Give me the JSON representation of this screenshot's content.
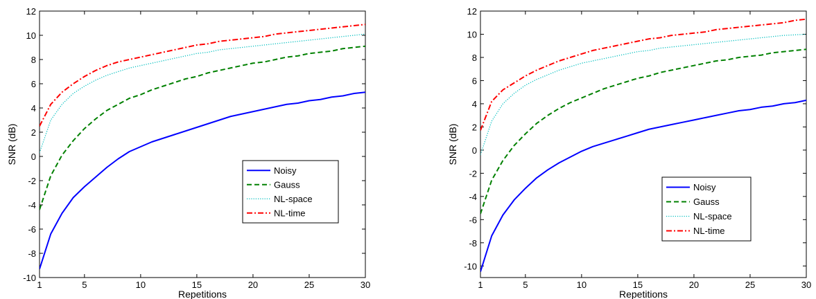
{
  "colors": {
    "noisy": "#0000ff",
    "gauss": "#008000",
    "nlspace": "#00bfbf",
    "nltime": "#ff0000",
    "axis": "#000000",
    "background": "#ffffff"
  },
  "chart_data": [
    {
      "type": "line",
      "xlabel": "Repetitions",
      "ylabel": "SNR (dB)",
      "xlim": [
        1,
        30
      ],
      "ylim": [
        -10,
        12
      ],
      "xticks": [
        1,
        5,
        10,
        15,
        20,
        25,
        30
      ],
      "yticks": [
        -10,
        -8,
        -6,
        -4,
        -2,
        0,
        2,
        4,
        6,
        8,
        10,
        12
      ],
      "grid": false,
      "legend_position": "center-right",
      "x": [
        1,
        2,
        3,
        4,
        5,
        6,
        7,
        8,
        9,
        10,
        11,
        12,
        13,
        14,
        15,
        16,
        17,
        18,
        19,
        20,
        21,
        22,
        23,
        24,
        25,
        26,
        27,
        28,
        29,
        30
      ],
      "series": [
        {
          "name": "Noisy",
          "color_key": "noisy",
          "style": "solid",
          "values": [
            -9.3,
            -6.4,
            -4.7,
            -3.4,
            -2.5,
            -1.7,
            -0.9,
            -0.2,
            0.4,
            0.8,
            1.2,
            1.5,
            1.8,
            2.1,
            2.4,
            2.7,
            3.0,
            3.3,
            3.5,
            3.7,
            3.9,
            4.1,
            4.3,
            4.4,
            4.6,
            4.7,
            4.9,
            5.0,
            5.2,
            5.3
          ]
        },
        {
          "name": "Gauss",
          "color_key": "gauss",
          "style": "dashed",
          "values": [
            -4.4,
            -1.6,
            0.1,
            1.3,
            2.3,
            3.1,
            3.8,
            4.3,
            4.8,
            5.1,
            5.5,
            5.8,
            6.1,
            6.4,
            6.6,
            6.9,
            7.1,
            7.3,
            7.5,
            7.7,
            7.8,
            8.0,
            8.2,
            8.3,
            8.5,
            8.6,
            8.7,
            8.9,
            9.0,
            9.1
          ]
        },
        {
          "name": "NL-space",
          "color_key": "nlspace",
          "style": "dotted",
          "values": [
            0.3,
            3.0,
            4.3,
            5.2,
            5.8,
            6.3,
            6.7,
            7.0,
            7.3,
            7.5,
            7.7,
            7.9,
            8.1,
            8.3,
            8.5,
            8.6,
            8.8,
            8.9,
            9.0,
            9.1,
            9.2,
            9.3,
            9.4,
            9.5,
            9.6,
            9.7,
            9.8,
            9.9,
            10.0,
            10.1
          ]
        },
        {
          "name": "NL-time",
          "color_key": "nltime",
          "style": "dashdot",
          "values": [
            2.5,
            4.3,
            5.3,
            6.0,
            6.6,
            7.1,
            7.5,
            7.8,
            8.0,
            8.2,
            8.4,
            8.6,
            8.8,
            9.0,
            9.2,
            9.3,
            9.5,
            9.6,
            9.7,
            9.8,
            9.9,
            10.1,
            10.2,
            10.3,
            10.4,
            10.5,
            10.6,
            10.7,
            10.8,
            10.9
          ]
        }
      ]
    },
    {
      "type": "line",
      "xlabel": "Repetitions",
      "ylabel": "SNR (dB)",
      "xlim": [
        1,
        30
      ],
      "ylim": [
        -11,
        12
      ],
      "xticks": [
        1,
        5,
        10,
        15,
        20,
        25,
        30
      ],
      "yticks": [
        -10,
        -8,
        -6,
        -4,
        -2,
        0,
        2,
        4,
        6,
        8,
        10,
        12
      ],
      "grid": false,
      "legend_position": "bottom-right",
      "x": [
        1,
        2,
        3,
        4,
        5,
        6,
        7,
        8,
        9,
        10,
        11,
        12,
        13,
        14,
        15,
        16,
        17,
        18,
        19,
        20,
        21,
        22,
        23,
        24,
        25,
        26,
        27,
        28,
        29,
        30
      ],
      "series": [
        {
          "name": "Noisy",
          "color_key": "noisy",
          "style": "solid",
          "values": [
            -10.5,
            -7.4,
            -5.6,
            -4.3,
            -3.3,
            -2.4,
            -1.7,
            -1.1,
            -0.6,
            -0.1,
            0.3,
            0.6,
            0.9,
            1.2,
            1.5,
            1.8,
            2.0,
            2.2,
            2.4,
            2.6,
            2.8,
            3.0,
            3.2,
            3.4,
            3.5,
            3.7,
            3.8,
            4.0,
            4.1,
            4.3
          ]
        },
        {
          "name": "Gauss",
          "color_key": "gauss",
          "style": "dashed",
          "values": [
            -5.5,
            -2.6,
            -0.9,
            0.4,
            1.4,
            2.3,
            3.0,
            3.6,
            4.1,
            4.5,
            4.9,
            5.3,
            5.6,
            5.9,
            6.2,
            6.4,
            6.7,
            6.9,
            7.1,
            7.3,
            7.5,
            7.7,
            7.8,
            8.0,
            8.1,
            8.2,
            8.4,
            8.5,
            8.6,
            8.7
          ]
        },
        {
          "name": "NL-space",
          "color_key": "nlspace",
          "style": "dotted",
          "values": [
            -0.4,
            2.5,
            4.0,
            4.9,
            5.6,
            6.1,
            6.5,
            6.9,
            7.2,
            7.5,
            7.7,
            7.9,
            8.1,
            8.3,
            8.5,
            8.6,
            8.8,
            8.9,
            9.0,
            9.1,
            9.2,
            9.3,
            9.4,
            9.5,
            9.6,
            9.7,
            9.8,
            9.9,
            9.95,
            10.0
          ]
        },
        {
          "name": "NL-time",
          "color_key": "nltime",
          "style": "dashdot",
          "values": [
            1.7,
            4.2,
            5.2,
            5.8,
            6.4,
            6.9,
            7.3,
            7.7,
            8.0,
            8.3,
            8.6,
            8.8,
            9.0,
            9.2,
            9.4,
            9.6,
            9.7,
            9.9,
            10.0,
            10.1,
            10.2,
            10.4,
            10.5,
            10.6,
            10.7,
            10.8,
            10.9,
            11.0,
            11.2,
            11.3
          ]
        }
      ]
    }
  ]
}
